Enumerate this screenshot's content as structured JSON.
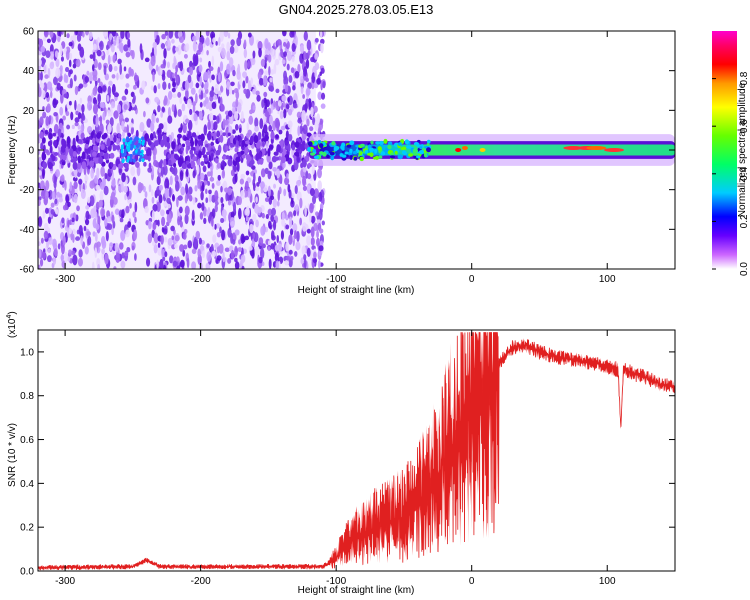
{
  "title": "GN04.2025.278.03.05.E13",
  "chart_data": [
    {
      "type": "heatmap",
      "xlabel": "Height of straight line (km)",
      "ylabel": "Frequency (Hz)",
      "xlim": [
        -320,
        150
      ],
      "ylim": [
        -60,
        60
      ],
      "xticks": [
        -300,
        -200,
        -100,
        0,
        100
      ],
      "xtick_labels": [
        "-300",
        "-200",
        "-100",
        "0",
        "100"
      ],
      "yticks": [
        60,
        40,
        20,
        0,
        -20,
        -40,
        -60
      ],
      "ytick_labels": [
        "60",
        "40",
        "20",
        "0",
        "-20",
        "-40",
        "-60"
      ],
      "noise_region_x": [
        -320,
        -115
      ],
      "signal_band_x": [
        -120,
        150
      ],
      "colorbar": {
        "label": "Normalized spectral amplitude",
        "ticks": [
          0.0,
          0.2,
          0.4,
          0.6,
          0.8
        ],
        "tick_labels": [
          "0.0",
          "0.2",
          "0.4",
          "0.6",
          "0.8"
        ],
        "colors": [
          "#ffffff",
          "#cc66ff",
          "#6600ff",
          "#0000ff",
          "#00ccff",
          "#00ff66",
          "#66ff00",
          "#ffff00",
          "#ff9900",
          "#ff0000",
          "#ff0066",
          "#ff00cc"
        ]
      }
    },
    {
      "type": "line",
      "color": "#ee3333",
      "xlabel": "Height of straight line (km)",
      "ylabel": "SNR (10 * v/v)",
      "scale_label": "(x10",
      "scale_exp": "4",
      "scale_close": ")",
      "xlim": [
        -320,
        150
      ],
      "ylim": [
        0,
        1.1
      ],
      "xticks": [
        -300,
        -200,
        -100,
        0,
        100
      ],
      "xtick_labels": [
        "-300",
        "-200",
        "-100",
        "0",
        "100"
      ],
      "yticks": [
        0.0,
        0.2,
        0.4,
        0.6,
        0.8,
        1.0
      ],
      "ytick_labels": [
        "0.0",
        "0.2",
        "0.4",
        "0.6",
        "0.8",
        "1.0"
      ],
      "series": [
        {
          "name": "SNR",
          "x": [
            -320,
            -250,
            -240,
            -230,
            -110,
            -100,
            -90,
            -80,
            -70,
            -60,
            -50,
            -40,
            -30,
            -20,
            -10,
            0,
            10,
            20,
            30,
            40,
            50,
            60,
            70,
            80,
            90,
            100,
            108,
            110,
            112,
            120,
            130,
            140,
            150
          ],
          "y": [
            0.015,
            0.02,
            0.05,
            0.02,
            0.02,
            0.06,
            0.14,
            0.17,
            0.2,
            0.22,
            0.25,
            0.3,
            0.38,
            0.5,
            0.6,
            0.72,
            0.85,
            0.95,
            1.02,
            1.03,
            1.0,
            0.98,
            0.97,
            0.96,
            0.95,
            0.93,
            0.92,
            0.65,
            0.92,
            0.9,
            0.88,
            0.85,
            0.84
          ]
        }
      ]
    }
  ]
}
